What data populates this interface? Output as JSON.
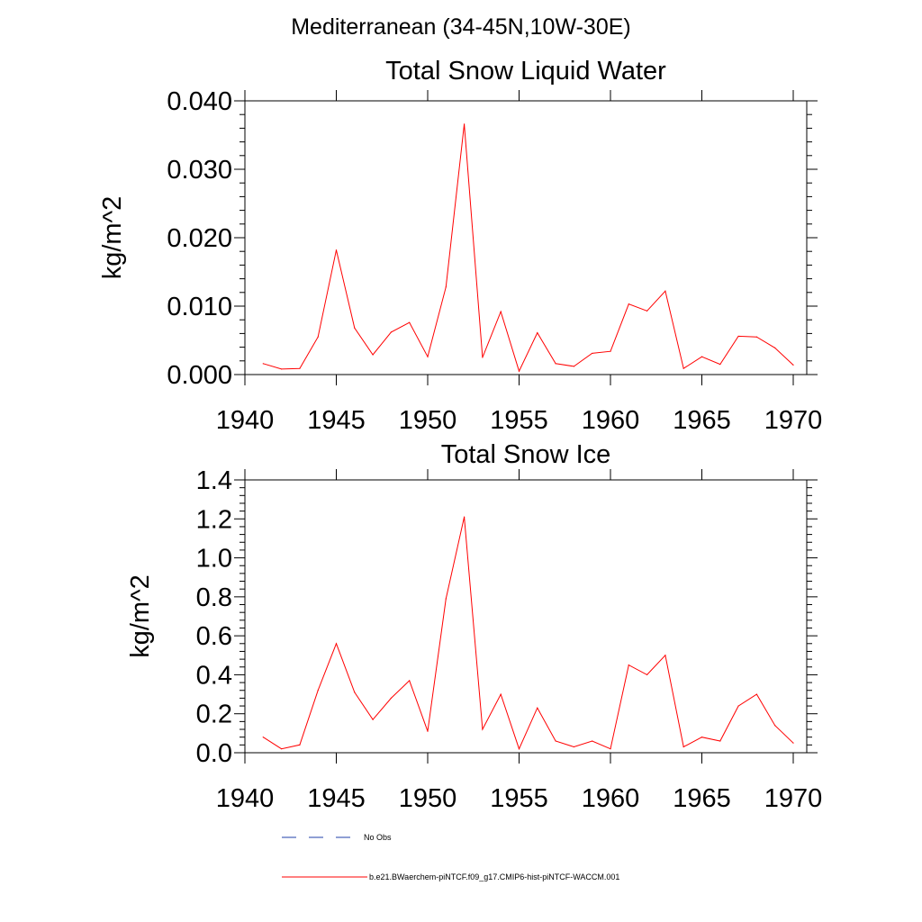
{
  "suptitle": "Mediterranean (34-45N,10W-30E)",
  "legend": {
    "obs": {
      "label": "No Obs",
      "color": "#1f3fa8"
    },
    "model": {
      "label": "b.e21.BWaerchem-piNTCF.f09_g17.CMIP6-hist-piNTCF-WACCM.001",
      "color": "#ff0000"
    }
  },
  "chart_data": [
    {
      "type": "line",
      "title": "Total Snow Liquid Water",
      "ylabel": "kg/m^2",
      "xlabel": "",
      "xlim": [
        1940,
        1970
      ],
      "ylim": [
        0,
        0.04
      ],
      "xticks": [
        1940,
        1945,
        1950,
        1955,
        1960,
        1965,
        1970
      ],
      "xtick_labels": [
        "1940",
        "1945",
        "1950",
        "1955",
        "1960",
        "1965",
        "1970"
      ],
      "yticks": [
        0,
        0.01,
        0.02,
        0.03,
        0.04
      ],
      "ytick_labels": [
        "0.000",
        "0.010",
        "0.020",
        "0.030",
        "0.040"
      ],
      "grid": false,
      "series": [
        {
          "name": "b.e21.BWaerchem-piNTCF.f09_g17.CMIP6-hist-piNTCF-WACCM.001",
          "color": "#ff0000",
          "x": [
            1941,
            1942,
            1943,
            1944,
            1945,
            1946,
            1947,
            1948,
            1949,
            1950,
            1951,
            1952,
            1953,
            1954,
            1955,
            1956,
            1957,
            1958,
            1959,
            1960,
            1961,
            1962,
            1963,
            1964,
            1965,
            1966,
            1967,
            1968,
            1969,
            1970
          ],
          "y": [
            0.0016,
            0.0008,
            0.0009,
            0.0055,
            0.0182,
            0.0068,
            0.0029,
            0.0062,
            0.0076,
            0.0026,
            0.0128,
            0.0366,
            0.0025,
            0.0092,
            0.0005,
            0.0061,
            0.0016,
            0.0012,
            0.0031,
            0.0034,
            0.0103,
            0.0093,
            0.0122,
            0.0009,
            0.0026,
            0.0015,
            0.0056,
            0.0055,
            0.0039,
            0.0014
          ]
        }
      ]
    },
    {
      "type": "line",
      "title": "Total Snow Ice",
      "ylabel": "kg/m^2",
      "xlabel": "",
      "xlim": [
        1940,
        1970
      ],
      "ylim": [
        0,
        1.4
      ],
      "xticks": [
        1940,
        1945,
        1950,
        1955,
        1960,
        1965,
        1970
      ],
      "xtick_labels": [
        "1940",
        "1945",
        "1950",
        "1955",
        "1960",
        "1965",
        "1970"
      ],
      "yticks": [
        0,
        0.2,
        0.4,
        0.6,
        0.8,
        1.0,
        1.2,
        1.4
      ],
      "ytick_labels": [
        "0.0",
        "0.2",
        "0.4",
        "0.6",
        "0.8",
        "1.0",
        "1.2",
        "1.4"
      ],
      "grid": false,
      "series": [
        {
          "name": "b.e21.BWaerchem-piNTCF.f09_g17.CMIP6-hist-piNTCF-WACCM.001",
          "color": "#ff0000",
          "x": [
            1941,
            1942,
            1943,
            1944,
            1945,
            1946,
            1947,
            1948,
            1949,
            1950,
            1951,
            1952,
            1953,
            1954,
            1955,
            1956,
            1957,
            1958,
            1959,
            1960,
            1961,
            1962,
            1963,
            1964,
            1965,
            1966,
            1967,
            1968,
            1969,
            1970
          ],
          "y": [
            0.08,
            0.02,
            0.04,
            0.32,
            0.56,
            0.31,
            0.17,
            0.28,
            0.37,
            0.11,
            0.79,
            1.21,
            0.12,
            0.3,
            0.02,
            0.23,
            0.06,
            0.03,
            0.06,
            0.02,
            0.45,
            0.4,
            0.5,
            0.03,
            0.08,
            0.06,
            0.24,
            0.3,
            0.14,
            0.05
          ]
        }
      ]
    }
  ]
}
